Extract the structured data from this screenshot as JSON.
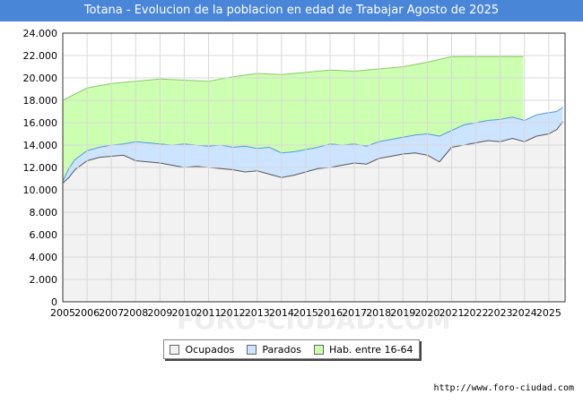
{
  "chart_data": {
    "type": "area",
    "title": "Totana - Evolucion de la poblacion en edad de Trabajar Agosto de 2025",
    "xlabel": "",
    "ylabel": "",
    "ylim": [
      0,
      24000
    ],
    "xlim": [
      2005,
      2025.67
    ],
    "y_ticks": [
      0,
      2000,
      4000,
      6000,
      8000,
      10000,
      12000,
      14000,
      16000,
      18000,
      20000,
      22000,
      24000
    ],
    "y_tick_labels": [
      "0",
      "2.000",
      "4.000",
      "6.000",
      "8.000",
      "10.000",
      "12.000",
      "14.000",
      "16.000",
      "18.000",
      "20.000",
      "22.000",
      "24.000"
    ],
    "x_tick_labels": [
      "2005",
      "2006",
      "2007",
      "2008",
      "2009",
      "2010",
      "2011",
      "2012",
      "2013",
      "2014",
      "2015",
      "2016",
      "2017",
      "2018",
      "2019",
      "2020",
      "2021",
      "2022",
      "2023",
      "2024",
      "2025"
    ],
    "grid": true,
    "series": [
      {
        "name": "Hab. entre 16-64",
        "color": "#ccffb0",
        "line_color": "#88cc66",
        "x": [
          2005,
          2006,
          2007,
          2008,
          2009,
          2010,
          2011,
          2012,
          2013,
          2014,
          2015,
          2016,
          2017,
          2018,
          2019,
          2020,
          2021,
          2022,
          2023,
          2023.95
        ],
        "values": [
          18000,
          19100,
          19500,
          19700,
          19900,
          19800,
          19700,
          20100,
          20400,
          20300,
          20500,
          20700,
          20600,
          20800,
          21000,
          21400,
          21900,
          21900,
          21900,
          21900
        ]
      },
      {
        "name": "Parados",
        "color": "#cce4ff",
        "line_color": "#5599dd",
        "x": [
          2005,
          2005.25,
          2005.5,
          2005.75,
          2006,
          2006.5,
          2007,
          2007.5,
          2008,
          2008.5,
          2009,
          2009.5,
          2010,
          2010.5,
          2011,
          2011.5,
          2012,
          2012.5,
          2013,
          2013.5,
          2014,
          2014.5,
          2015,
          2015.5,
          2016,
          2016.5,
          2017,
          2017.5,
          2018,
          2018.5,
          2019,
          2019.5,
          2020,
          2020.5,
          2021,
          2021.5,
          2022,
          2022.5,
          2023,
          2023.5,
          2024,
          2024.5,
          2025,
          2025.33,
          2025.58
        ],
        "values": [
          10800,
          11900,
          12700,
          13100,
          13500,
          13800,
          14000,
          14100,
          14300,
          14200,
          14100,
          14000,
          14100,
          14000,
          13900,
          14000,
          13800,
          13900,
          13700,
          13800,
          13300,
          13400,
          13600,
          13800,
          14100,
          14000,
          14100,
          13900,
          14300,
          14500,
          14700,
          14900,
          15000,
          14800,
          15300,
          15800,
          16000,
          16200,
          16300,
          16500,
          16200,
          16700,
          16900,
          17000,
          17400
        ]
      },
      {
        "name": "Ocupados",
        "color": "#f2f2f2",
        "line_color": "#555555",
        "x": [
          2005,
          2005.25,
          2005.5,
          2005.75,
          2006,
          2006.5,
          2007,
          2007.5,
          2008,
          2008.5,
          2009,
          2009.5,
          2010,
          2010.5,
          2011,
          2011.5,
          2012,
          2012.5,
          2013,
          2013.5,
          2014,
          2014.5,
          2015,
          2015.5,
          2016,
          2016.5,
          2017,
          2017.5,
          2018,
          2018.5,
          2019,
          2019.5,
          2020,
          2020.5,
          2021,
          2021.5,
          2022,
          2022.5,
          2023,
          2023.5,
          2024,
          2024.5,
          2025,
          2025.33,
          2025.58
        ],
        "values": [
          10600,
          11100,
          11800,
          12200,
          12600,
          12900,
          13000,
          13100,
          12600,
          12500,
          12400,
          12200,
          12000,
          12100,
          12000,
          11900,
          11800,
          11600,
          11700,
          11400,
          11100,
          11300,
          11600,
          11900,
          12000,
          12200,
          12400,
          12300,
          12800,
          13000,
          13200,
          13300,
          13100,
          12500,
          13800,
          14000,
          14200,
          14400,
          14300,
          14600,
          14300,
          14800,
          15000,
          15400,
          16100
        ]
      }
    ],
    "legend": {
      "placement": "bottom-center",
      "entries": [
        "Ocupados",
        "Parados",
        "Hab. entre 16-64"
      ]
    }
  },
  "legend_colors": {
    "ocupados": "#f2f2f2",
    "parados": "#cce4ff",
    "hab": "#ccffb0"
  },
  "watermark": "FORO-CIUDAD.COM",
  "source": "http://www.foro-ciudad.com"
}
